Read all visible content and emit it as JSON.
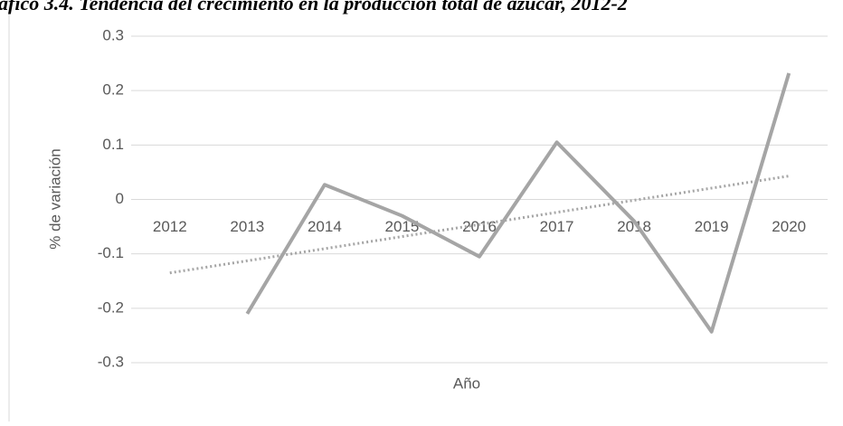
{
  "chart_data": {
    "type": "line",
    "title": "áfico 3.4. Tendencia del crecimiento en la producción total de azúcar, 2012-2",
    "x_label": "Año",
    "y_label": "% de variación",
    "categories": [
      "2012",
      "2013",
      "2014",
      "2015",
      "2016",
      "2017",
      "2018",
      "2019",
      "2020"
    ],
    "series": [
      {
        "color": "#a5a5a5",
        "values": [
          null,
          -0.21,
          0.027,
          -0.03,
          -0.105,
          0.105,
          -0.04,
          -0.243,
          0.232
        ]
      }
    ],
    "trendline": {
      "color": "#a5a5a5",
      "style": "dotted",
      "start": -0.135,
      "end": 0.043
    },
    "ylim": [
      -0.3,
      0.3
    ],
    "yticks": [
      -0.3,
      -0.2,
      -0.1,
      0,
      0.1,
      0.2,
      0.3
    ],
    "grid": true
  }
}
